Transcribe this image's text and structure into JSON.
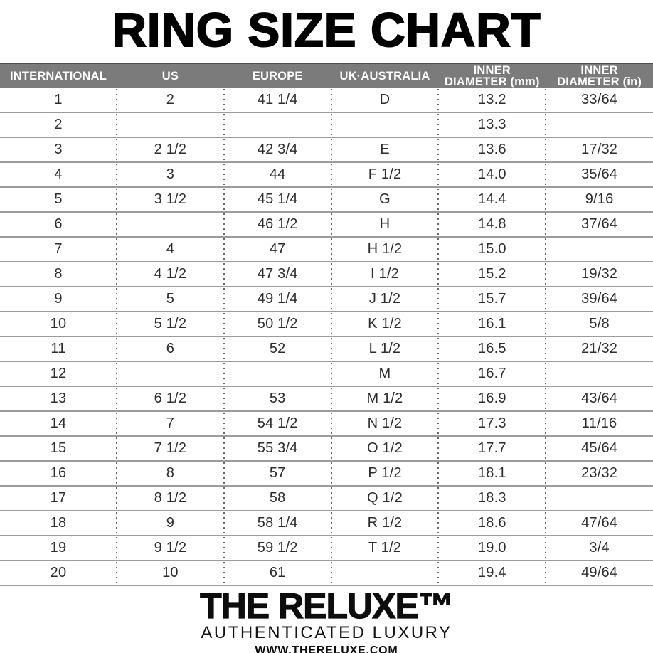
{
  "title": "RING SIZE CHART",
  "table": {
    "columns": [
      "INTERNATIONAL",
      "US",
      "EUROPE",
      "UK·AUSTRALIA",
      "INNER\nDIAMETER (mm)",
      "INNER\nDIAMETER (in)"
    ],
    "rows": [
      [
        "1",
        "2",
        "41 1/4",
        "D",
        "13.2",
        "33/64"
      ],
      [
        "2",
        "",
        "",
        "",
        "13.3",
        ""
      ],
      [
        "3",
        "2 1/2",
        "42 3/4",
        "E",
        "13.6",
        "17/32"
      ],
      [
        "4",
        "3",
        "44",
        "F 1/2",
        "14.0",
        "35/64"
      ],
      [
        "5",
        "3 1/2",
        "45 1/4",
        "G",
        "14.4",
        "9/16"
      ],
      [
        "6",
        "",
        "46 1/2",
        "H",
        "14.8",
        "37/64"
      ],
      [
        "7",
        "4",
        "47",
        "H 1/2",
        "15.0",
        ""
      ],
      [
        "8",
        "4 1/2",
        "47 3/4",
        "I 1/2",
        "15.2",
        "19/32"
      ],
      [
        "9",
        "5",
        "49 1/4",
        "J 1/2",
        "15.7",
        "39/64"
      ],
      [
        "10",
        "5 1/2",
        "50 1/2",
        "K 1/2",
        "16.1",
        "5/8"
      ],
      [
        "11",
        "6",
        "52",
        "L 1/2",
        "16.5",
        "21/32"
      ],
      [
        "12",
        "",
        "",
        "M",
        "16.7",
        ""
      ],
      [
        "13",
        "6 1/2",
        "53",
        "M 1/2",
        "16.9",
        "43/64"
      ],
      [
        "14",
        "7",
        "54 1/2",
        "N 1/2",
        "17.3",
        "11/16"
      ],
      [
        "15",
        "7 1/2",
        "55 3/4",
        "O 1/2",
        "17.7",
        "45/64"
      ],
      [
        "16",
        "8",
        "57",
        "P 1/2",
        "18.1",
        "23/32"
      ],
      [
        "17",
        "8 1/2",
        "58",
        "Q 1/2",
        "18.3",
        ""
      ],
      [
        "18",
        "9",
        "58 1/4",
        "R 1/2",
        "18.6",
        "47/64"
      ],
      [
        "19",
        "9 1/2",
        "59 1/2",
        "T 1/2",
        "19.0",
        "3/4"
      ],
      [
        "20",
        "10",
        "61",
        "",
        "19.4",
        "49/64"
      ]
    ]
  },
  "footer": {
    "brand": "THE RELUXE™",
    "tagline": "AUTHENTICATED LUXURY",
    "website": "WWW.THERELUXE.COM"
  },
  "colors": {
    "header_bg": "#7b7b7b",
    "header_text": "#ffffff",
    "row_line": "#9c9c9c",
    "dotted_separator": "#666666",
    "body_text": "#2d2d2d",
    "title_text": "#000000"
  }
}
